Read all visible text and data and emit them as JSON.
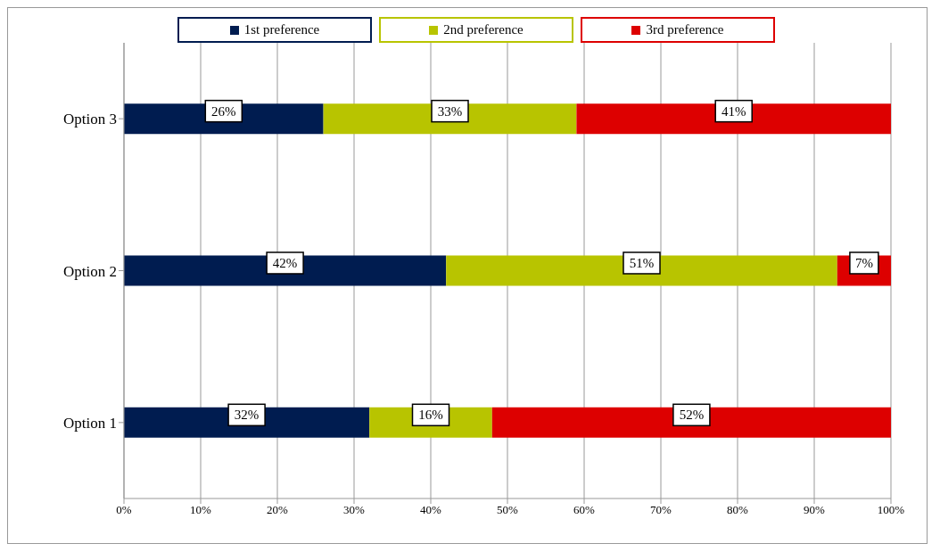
{
  "chart_data": {
    "type": "bar",
    "orientation": "horizontal",
    "stacked": true,
    "categories": [
      "Option 3",
      "Option 2",
      "Option 1"
    ],
    "series": [
      {
        "name": "1st preference",
        "color": "#001c50",
        "values": [
          26,
          42,
          32
        ],
        "value_labels": [
          "26%",
          "42%",
          "32%"
        ]
      },
      {
        "name": "2nd preference",
        "color": "#b8c400",
        "values": [
          33,
          51,
          16
        ],
        "value_labels": [
          "33%",
          "51%",
          "16%"
        ]
      },
      {
        "name": "3rd preference",
        "color": "#dd0000",
        "values": [
          41,
          7,
          52
        ],
        "value_labels": [
          "41%",
          "7%",
          "52%"
        ]
      }
    ],
    "xlim": [
      0,
      100
    ],
    "xticks": [
      {
        "value": 0,
        "label": "0%"
      },
      {
        "value": 10,
        "label": "10%"
      },
      {
        "value": 20,
        "label": "20%"
      },
      {
        "value": 30,
        "label": "30%"
      },
      {
        "value": 40,
        "label": "40%"
      },
      {
        "value": 50,
        "label": "50%"
      },
      {
        "value": 60,
        "label": "60%"
      },
      {
        "value": 70,
        "label": "70%"
      },
      {
        "value": 80,
        "label": "80%"
      },
      {
        "value": 90,
        "label": "90%"
      },
      {
        "value": 100,
        "label": "100%"
      }
    ],
    "grid": "x",
    "legend": "top"
  }
}
